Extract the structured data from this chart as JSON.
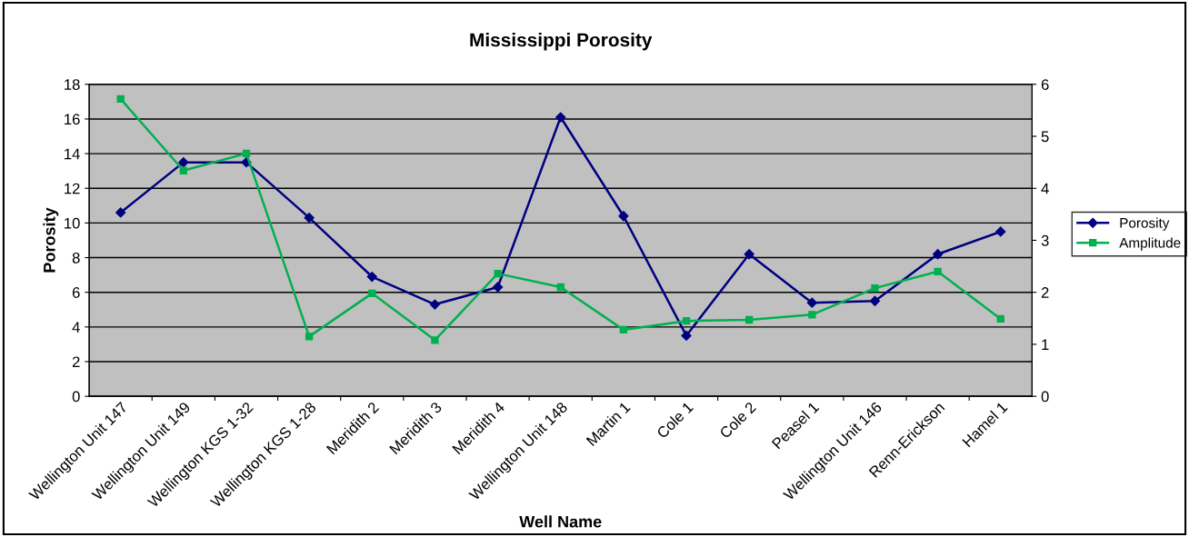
{
  "chart_data": {
    "type": "line",
    "title": "Mississippi Porosity",
    "xlabel": "Well Name",
    "ylabel": "Porosity",
    "categories": [
      "Wellington Unit 147",
      "Wellington Unit 149",
      "Wellington KGS 1-32",
      "Wellington KGS 1-28",
      "Meridith 2",
      "Meridith 3",
      "Meridith 4",
      "Wellington Unit 148",
      "Martin 1",
      "Cole 1",
      "Cole 2",
      "Peasel 1",
      "Wellington Unit 146",
      "Renn-Erickson",
      "Hamel 1"
    ],
    "series": [
      {
        "name": "Porosity",
        "color": "#000080",
        "marker": "diamond",
        "values": [
          10.6,
          13.5,
          13.5,
          10.3,
          6.9,
          5.3,
          6.3,
          16.1,
          10.4,
          3.5,
          8.2,
          5.4,
          5.5,
          8.2,
          9.5
        ]
      },
      {
        "name": "Amplitude",
        "color": "#00b050",
        "marker": "square",
        "axis": "y2",
        "values": [
          5.72,
          4.34,
          4.67,
          1.15,
          1.98,
          1.08,
          2.36,
          2.1,
          1.28,
          1.45,
          1.47,
          1.57,
          2.08,
          2.4,
          1.49
        ]
      }
    ],
    "ylim": [
      0,
      18
    ],
    "yticks": [
      0,
      2,
      4,
      6,
      8,
      10,
      12,
      14,
      16,
      18
    ],
    "y2lim": [
      0,
      6
    ],
    "y2ticks": [
      0,
      1,
      2,
      3,
      4,
      5,
      6
    ],
    "grid": "y",
    "legend": "right"
  }
}
